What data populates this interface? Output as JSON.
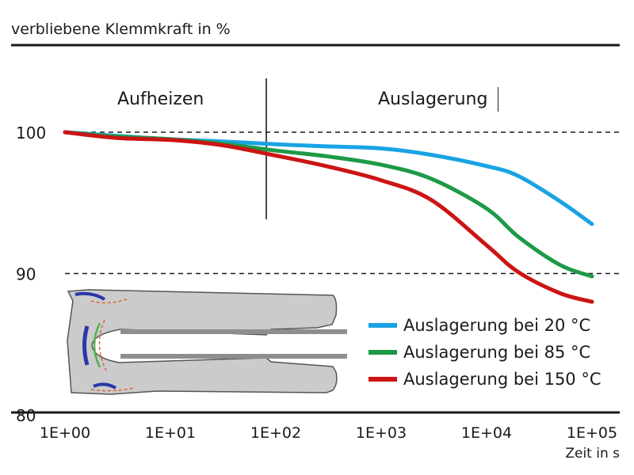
{
  "header": {
    "ylabel": "verbliebene Klemmkraft in %"
  },
  "phases": {
    "left": "Aufheizen",
    "right": "Auslagerung"
  },
  "chart_data": {
    "type": "line",
    "title": "",
    "ylabel": "verbliebene Klemmkraft in %",
    "xlabel": "Zeit in s",
    "xscale": "log",
    "xlim": [
      1,
      100000
    ],
    "ylim": [
      80,
      100
    ],
    "x_ticks": [
      "1E+00",
      "1E+01",
      "1E+02",
      "1E+03",
      "1E+04",
      "1E+05"
    ],
    "y_ticks": [
      "100",
      "90",
      "80"
    ],
    "reference_lines_y": [
      100,
      90
    ],
    "phase_boundary_x": 100,
    "legend_position": "bottom-right",
    "series": [
      {
        "name": "Auslagerung bei 20 °C",
        "color": "#1aa3e3",
        "points": [
          [
            1,
            100
          ],
          [
            3,
            99.75
          ],
          [
            10,
            99.5
          ],
          [
            30,
            99.35
          ],
          [
            100,
            99.15
          ],
          [
            300,
            99.0
          ],
          [
            1000,
            98.85
          ],
          [
            3000,
            98.4
          ],
          [
            10000,
            97.6
          ],
          [
            20000,
            96.9
          ],
          [
            50000,
            95.1
          ],
          [
            100000,
            93.5
          ]
        ]
      },
      {
        "name": "Auslagerung bei 85 °C",
        "color": "#1e9a46",
        "points": [
          [
            1,
            100
          ],
          [
            3,
            99.7
          ],
          [
            10,
            99.5
          ],
          [
            30,
            99.2
          ],
          [
            100,
            98.7
          ],
          [
            300,
            98.3
          ],
          [
            1000,
            97.7
          ],
          [
            3000,
            96.7
          ],
          [
            10000,
            94.6
          ],
          [
            20000,
            92.6
          ],
          [
            50000,
            90.6
          ],
          [
            100000,
            89.8
          ]
        ]
      },
      {
        "name": "Auslagerung bei 150 °C",
        "color": "#cc1414",
        "points": [
          [
            1,
            100
          ],
          [
            3,
            99.6
          ],
          [
            10,
            99.45
          ],
          [
            30,
            99.1
          ],
          [
            100,
            98.35
          ],
          [
            300,
            97.6
          ],
          [
            1000,
            96.6
          ],
          [
            3000,
            95.2
          ],
          [
            10000,
            92.0
          ],
          [
            20000,
            90.1
          ],
          [
            50000,
            88.6
          ],
          [
            100000,
            88.0
          ]
        ]
      }
    ]
  }
}
